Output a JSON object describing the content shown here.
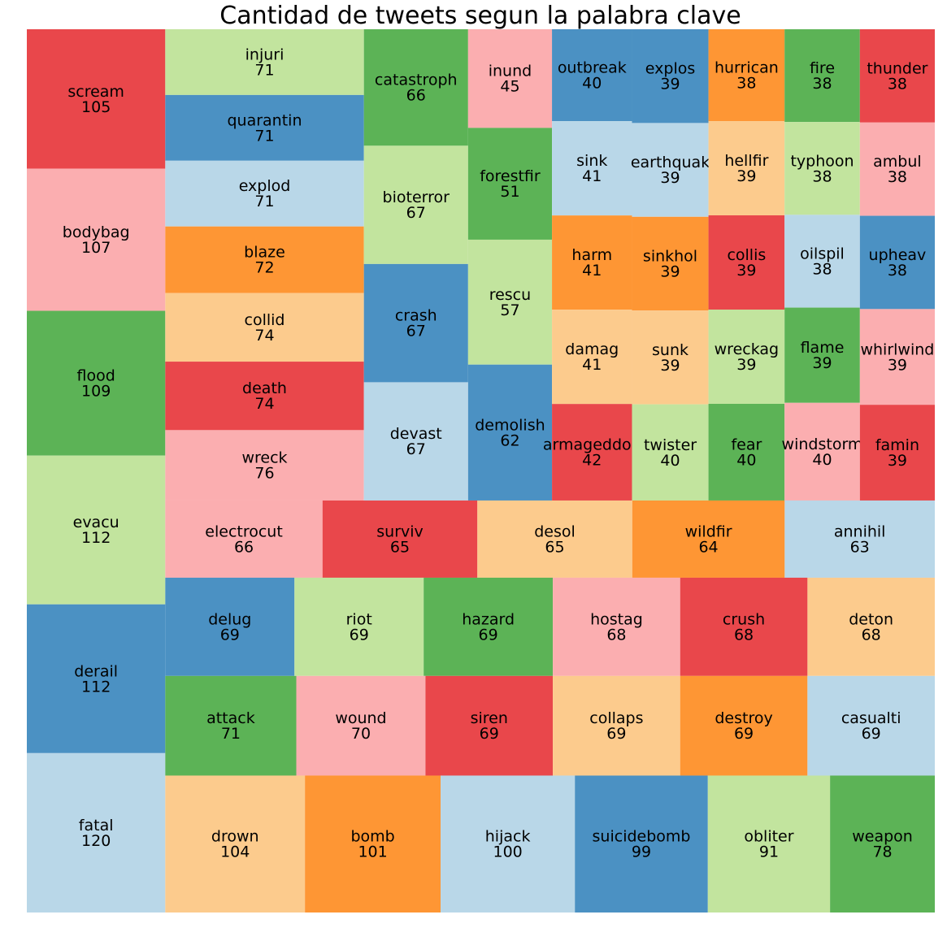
{
  "chart_data": {
    "type": "treemap",
    "title": "Cantidad de tweets segun la palabra clave",
    "palette": {
      "light-blue": "#b9d7e8",
      "blue": "#4b91c3",
      "light-green": "#c2e49e",
      "green": "#5cb356",
      "pink": "#fbaeb0",
      "red": "#e9474b",
      "light-orange": "#fccb8d",
      "orange": "#fe9634"
    },
    "columns": [
      {
        "items": [
          {
            "label": "scream",
            "value": 105,
            "color": "red"
          },
          {
            "label": "bodybag",
            "value": 107,
            "color": "pink"
          },
          {
            "label": "flood",
            "value": 109,
            "color": "green"
          },
          {
            "label": "evacu",
            "value": 112,
            "color": "light-green"
          },
          {
            "label": "derail",
            "value": 112,
            "color": "blue"
          },
          {
            "label": "fatal",
            "value": 120,
            "color": "light-blue"
          }
        ]
      },
      {
        "items": [
          {
            "label": "injuri",
            "value": 71,
            "color": "light-green"
          },
          {
            "label": "quarantin",
            "value": 71,
            "color": "blue"
          },
          {
            "label": "explod",
            "value": 71,
            "color": "light-blue"
          },
          {
            "label": "blaze",
            "value": 72,
            "color": "orange"
          },
          {
            "label": "collid",
            "value": 74,
            "color": "light-orange"
          },
          {
            "label": "death",
            "value": 74,
            "color": "red"
          },
          {
            "label": "wreck",
            "value": 76,
            "color": "pink"
          }
        ]
      },
      {
        "items": [
          {
            "label": "catastroph",
            "value": 66,
            "color": "green"
          },
          {
            "label": "bioterror",
            "value": 67,
            "color": "light-green"
          },
          {
            "label": "crash",
            "value": 67,
            "color": "blue"
          },
          {
            "label": "devast",
            "value": 67,
            "color": "light-blue"
          }
        ]
      },
      {
        "items": [
          {
            "label": "inund",
            "value": 45,
            "color": "pink"
          },
          {
            "label": "forestfir",
            "value": 51,
            "color": "green"
          },
          {
            "label": "rescu",
            "value": 57,
            "color": "light-green"
          },
          {
            "label": "demolish",
            "value": 62,
            "color": "blue"
          }
        ]
      },
      {
        "items": [
          {
            "label": "outbreak",
            "value": 40,
            "color": "blue"
          },
          {
            "label": "sink",
            "value": 41,
            "color": "light-blue"
          },
          {
            "label": "harm",
            "value": 41,
            "color": "orange"
          },
          {
            "label": "damag",
            "value": 41,
            "color": "light-orange"
          },
          {
            "label": "armageddon",
            "value": 42,
            "color": "red"
          }
        ]
      },
      {
        "items": [
          {
            "label": "explos",
            "value": 39,
            "color": "blue"
          },
          {
            "label": "earthquak",
            "value": 39,
            "color": "light-blue"
          },
          {
            "label": "sinkhol",
            "value": 39,
            "color": "orange"
          },
          {
            "label": "sunk",
            "value": 39,
            "color": "light-orange"
          },
          {
            "label": "twister",
            "value": 40,
            "color": "light-green"
          }
        ]
      },
      {
        "items": [
          {
            "label": "hurrican",
            "value": 38,
            "color": "orange"
          },
          {
            "label": "hellfir",
            "value": 39,
            "color": "light-orange"
          },
          {
            "label": "collis",
            "value": 39,
            "color": "red"
          },
          {
            "label": "wreckag",
            "value": 39,
            "color": "light-green"
          },
          {
            "label": "fear",
            "value": 40,
            "color": "green"
          }
        ]
      },
      {
        "items": [
          {
            "label": "fire",
            "value": 38,
            "color": "green"
          },
          {
            "label": "typhoon",
            "value": 38,
            "color": "light-green"
          },
          {
            "label": "oilspil",
            "value": 38,
            "color": "light-blue"
          },
          {
            "label": "flame",
            "value": 39,
            "color": "green"
          },
          {
            "label": "windstorm",
            "value": 40,
            "color": "pink"
          }
        ]
      },
      {
        "items": [
          {
            "label": "thunder",
            "value": 38,
            "color": "red"
          },
          {
            "label": "ambul",
            "value": 38,
            "color": "pink"
          },
          {
            "label": "upheav",
            "value": 38,
            "color": "blue"
          },
          {
            "label": "whirlwind",
            "value": 39,
            "color": "pink"
          },
          {
            "label": "famin",
            "value": 39,
            "color": "red"
          }
        ]
      }
    ],
    "rows": [
      {
        "items": [
          {
            "label": "electrocut",
            "value": 66,
            "color": "pink"
          },
          {
            "label": "surviv",
            "value": 65,
            "color": "red"
          },
          {
            "label": "desol",
            "value": 65,
            "color": "light-orange"
          },
          {
            "label": "wildfir",
            "value": 64,
            "color": "orange"
          },
          {
            "label": "annihil",
            "value": 63,
            "color": "light-blue"
          }
        ]
      },
      {
        "items": [
          {
            "label": "delug",
            "value": 69,
            "color": "blue"
          },
          {
            "label": "riot",
            "value": 69,
            "color": "light-green"
          },
          {
            "label": "hazard",
            "value": 69,
            "color": "green"
          },
          {
            "label": "hostag",
            "value": 68,
            "color": "pink"
          },
          {
            "label": "crush",
            "value": 68,
            "color": "red"
          },
          {
            "label": "deton",
            "value": 68,
            "color": "light-orange"
          }
        ]
      },
      {
        "items": [
          {
            "label": "attack",
            "value": 71,
            "color": "green"
          },
          {
            "label": "wound",
            "value": 70,
            "color": "pink"
          },
          {
            "label": "siren",
            "value": 69,
            "color": "red"
          },
          {
            "label": "collaps",
            "value": 69,
            "color": "light-orange"
          },
          {
            "label": "destroy",
            "value": 69,
            "color": "orange"
          },
          {
            "label": "casualti",
            "value": 69,
            "color": "light-blue"
          }
        ]
      },
      {
        "items": [
          {
            "label": "drown",
            "value": 104,
            "color": "light-orange"
          },
          {
            "label": "bomb",
            "value": 101,
            "color": "orange"
          },
          {
            "label": "hijack",
            "value": 100,
            "color": "light-blue"
          },
          {
            "label": "suicidebomb",
            "value": 99,
            "color": "blue"
          },
          {
            "label": "obliter",
            "value": 91,
            "color": "light-green"
          },
          {
            "label": "weapon",
            "value": 78,
            "color": "green"
          }
        ]
      }
    ]
  }
}
